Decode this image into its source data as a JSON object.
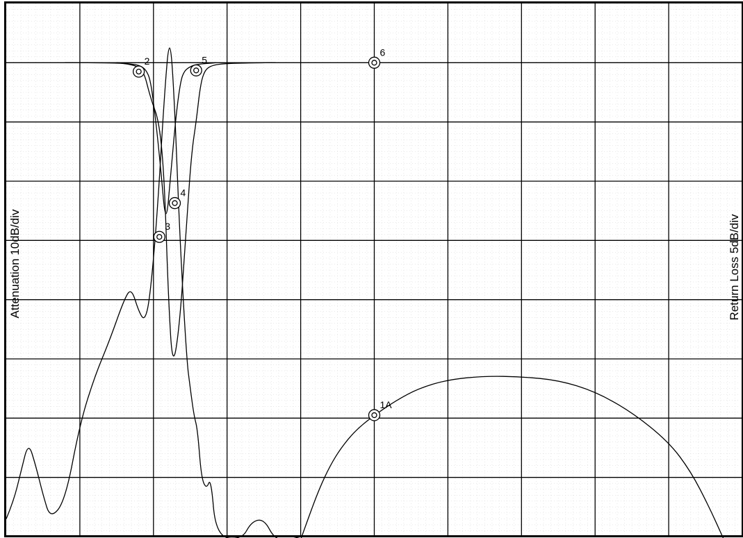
{
  "chart_data": {
    "type": "line",
    "title": "",
    "ylabel_left": "Attenuation 10dB/div",
    "ylabel_right": "Return Loss 5dB/div",
    "x_divisions": 10,
    "y_divisions": 9,
    "grid": true,
    "fine_grid": true,
    "series": [
      {
        "values_div": [
          [
            0.0,
            8.7
          ],
          [
            0.1,
            8.4
          ],
          [
            0.2,
            7.9
          ],
          [
            0.3,
            7.4
          ],
          [
            0.4,
            7.8
          ],
          [
            0.5,
            8.3
          ],
          [
            0.6,
            8.7
          ],
          [
            0.8,
            8.4
          ],
          [
            1.0,
            7.1
          ],
          [
            1.2,
            6.3
          ],
          [
            1.4,
            5.7
          ],
          [
            1.6,
            5.0
          ],
          [
            1.7,
            4.8
          ],
          [
            1.8,
            5.2
          ],
          [
            1.88,
            5.36
          ],
          [
            1.95,
            5.0
          ],
          [
            2.05,
            3.6
          ],
          [
            2.15,
            1.5
          ],
          [
            2.22,
            0.5
          ],
          [
            2.28,
            1.5
          ],
          [
            2.36,
            4.0
          ],
          [
            2.45,
            6.0
          ],
          [
            2.5,
            6.5
          ],
          [
            2.55,
            6.95
          ],
          [
            2.6,
            7.2
          ],
          [
            2.65,
            8.0
          ],
          [
            2.72,
            8.2
          ],
          [
            2.78,
            8.0
          ],
          [
            2.85,
            9.0
          ],
          [
            3.2,
            9.05
          ],
          [
            3.33,
            8.75
          ],
          [
            3.5,
            8.7
          ],
          [
            3.65,
            9.05
          ],
          [
            3.85,
            9.05
          ],
          [
            4.0,
            9.0
          ]
        ]
      },
      {
        "values_div": [
          [
            0.8,
            1.0
          ],
          [
            1.5,
            1.0
          ],
          [
            1.7,
            1.03
          ],
          [
            1.86,
            1.1
          ],
          [
            1.96,
            1.6
          ],
          [
            2.08,
            2.0
          ],
          [
            2.15,
            3.0
          ],
          [
            2.2,
            4.9
          ],
          [
            2.26,
            6.2
          ],
          [
            2.36,
            5.4
          ],
          [
            2.46,
            3.5
          ],
          [
            2.52,
            2.5
          ],
          [
            2.58,
            2.0
          ],
          [
            2.64,
            1.35
          ],
          [
            2.7,
            1.12
          ],
          [
            2.8,
            1.04
          ],
          [
            3.0,
            1.01
          ],
          [
            3.5,
            1.0
          ],
          [
            3.66,
            1.0
          ]
        ]
      },
      {
        "values_div": [
          [
            1.5,
            1.0
          ],
          [
            1.7,
            1.02
          ],
          [
            1.82,
            1.05
          ],
          [
            1.9,
            1.12
          ],
          [
            1.96,
            1.3
          ],
          [
            2.02,
            1.85
          ],
          [
            2.1,
            2.8
          ],
          [
            2.17,
            3.8
          ],
          [
            2.24,
            2.8
          ],
          [
            2.31,
            1.85
          ],
          [
            2.37,
            1.3
          ],
          [
            2.42,
            1.14
          ],
          [
            2.48,
            1.08
          ],
          [
            2.55,
            1.04
          ],
          [
            2.65,
            1.02
          ],
          [
            2.75,
            1.01
          ],
          [
            2.85,
            1.0
          ]
        ]
      },
      {
        "values_div": [
          [
            4.0,
            9.05
          ],
          [
            4.1,
            8.7
          ],
          [
            4.25,
            8.2
          ],
          [
            4.4,
            7.8
          ],
          [
            4.55,
            7.5
          ],
          [
            4.75,
            7.2
          ],
          [
            5.0,
            6.95
          ],
          [
            5.3,
            6.7
          ],
          [
            5.6,
            6.5
          ],
          [
            6.0,
            6.35
          ],
          [
            6.5,
            6.29
          ],
          [
            7.0,
            6.3
          ],
          [
            7.5,
            6.36
          ],
          [
            8.0,
            6.55
          ],
          [
            8.5,
            6.9
          ],
          [
            9.0,
            7.4
          ],
          [
            9.3,
            7.9
          ],
          [
            9.55,
            8.5
          ],
          [
            9.75,
            9.05
          ]
        ]
      }
    ],
    "markers": [
      {
        "label": "2",
        "x": 1.8,
        "y": 1.15
      },
      {
        "label": "5",
        "x": 2.58,
        "y": 1.13
      },
      {
        "label": "3",
        "x": 2.08,
        "y": 3.94
      },
      {
        "label": "4",
        "x": 2.29,
        "y": 3.37
      },
      {
        "label": "6",
        "x": 5.0,
        "y": 1.0
      },
      {
        "label": "1A",
        "x": 5.0,
        "y": 6.95
      }
    ],
    "colors": {
      "line": "#000000",
      "grid": "#000000",
      "fine_grid": "#d9d9d9",
      "background": "#ffffff"
    }
  }
}
